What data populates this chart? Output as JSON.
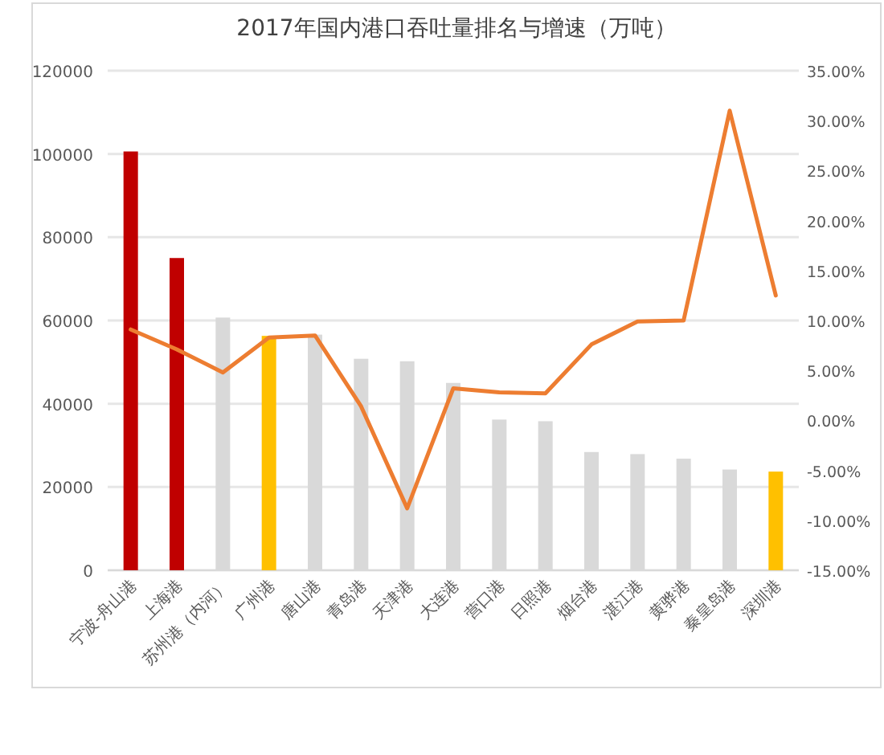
{
  "chart_data": {
    "type": "bar",
    "title": "2017年国内港口吞吐量排名与增速（万吨）",
    "categories": [
      "宁波-舟山港",
      "上海港",
      "苏州港（内河）",
      "广州港",
      "唐山港",
      "青岛港",
      "天津港",
      "大连港",
      "营口港",
      "日照港",
      "烟台港",
      "湛江港",
      "黄骅港",
      "秦皇岛港",
      "深圳港"
    ],
    "series": [
      {
        "colors": [
          "#c00000",
          "#c00000",
          "#d9d9d9",
          "#ffc000",
          "#d9d9d9",
          "#d9d9d9",
          "#d9d9d9",
          "#d9d9d9",
          "#d9d9d9",
          "#d9d9d9",
          "#d9d9d9",
          "#d9d9d9",
          "#d9d9d9",
          "#d9d9d9",
          "#ffc000"
        ],
        "values": [
          100600,
          75000,
          60700,
          56300,
          56600,
          50800,
          50200,
          45000,
          36200,
          35800,
          28400,
          27900,
          26800,
          24200,
          23700
        ]
      },
      {
        "type": "line",
        "axis": "y2",
        "color": "#ed7d31",
        "values": [
          9.1,
          7.1,
          4.8,
          8.3,
          8.5,
          1.4,
          -8.8,
          3.2,
          2.8,
          2.7,
          7.6,
          9.9,
          10.0,
          31.0,
          12.5
        ]
      }
    ],
    "ylim": [
      0,
      120000
    ],
    "yticks": [
      0,
      20000,
      40000,
      60000,
      80000,
      100000,
      120000
    ],
    "y2lim": [
      -15,
      35
    ],
    "y2ticks": [
      {
        "value": -15,
        "label": "-15.00%"
      },
      {
        "value": -10,
        "label": "-10.00%"
      },
      {
        "value": -5,
        "label": "-5.00%"
      },
      {
        "value": 0,
        "label": "0.00%"
      },
      {
        "value": 5,
        "label": "5.00%"
      },
      {
        "value": 10,
        "label": "10.00%"
      },
      {
        "value": 15,
        "label": "15.00%"
      },
      {
        "value": 20,
        "label": "20.00%"
      },
      {
        "value": 25,
        "label": "25.00%"
      },
      {
        "value": 30,
        "label": "30.00%"
      },
      {
        "value": 35,
        "label": "35.00%"
      }
    ],
    "grid": "y"
  }
}
